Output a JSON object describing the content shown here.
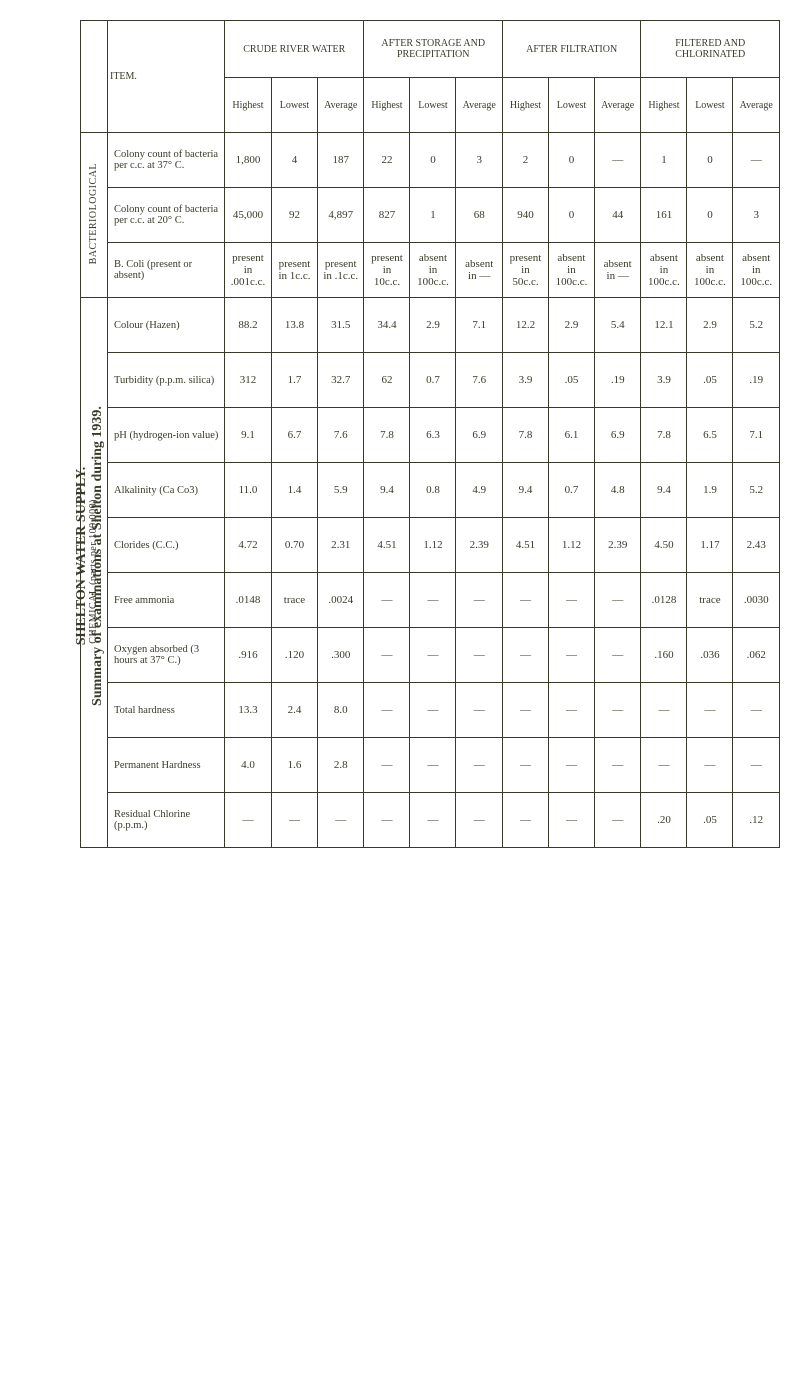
{
  "title": {
    "line1": "SHELTON WATER SUPPLY.",
    "line2": "Summary of examinations at Shelton during 1939."
  },
  "side_labels": {
    "bacteriological": "BACTERIOLOGICAL",
    "chemical": "CHEMICAL (parts per 100,000)"
  },
  "column_groups": [
    {
      "label": "CRUDE RIVER WATER"
    },
    {
      "label": "AFTER STORAGE AND PRECIPITATION"
    },
    {
      "label": "AFTER FILTRATION"
    },
    {
      "label": "FILTERED AND CHLORINATED"
    }
  ],
  "sub_columns": [
    "Highest",
    "Lowest",
    "Average"
  ],
  "item_header": "ITEM.",
  "rows": [
    {
      "label": "Colony count of bacteria per c.c. at 37° C.",
      "values": [
        "1,800",
        "4",
        "187",
        "22",
        "0",
        "3",
        "2",
        "0",
        "—",
        "1",
        "0",
        "—"
      ]
    },
    {
      "label": "Colony count of bacteria per c.c. at 20° C.",
      "values": [
        "45,000",
        "92",
        "4,897",
        "827",
        "1",
        "68",
        "940",
        "0",
        "44",
        "161",
        "0",
        "3"
      ]
    },
    {
      "label": "B. Coli (present or absent)",
      "values": [
        "present in .001c.c.",
        "present in 1c.c.",
        "present in .1c.c.",
        "present in 10c.c.",
        "absent in 100c.c.",
        "absent in —",
        "present in 50c.c.",
        "absent in 100c.c.",
        "absent in —",
        "absent in 100c.c.",
        "absent in 100c.c.",
        "absent in 100c.c."
      ]
    },
    {
      "label": "Colour (Hazen)",
      "values": [
        "88.2",
        "13.8",
        "31.5",
        "34.4",
        "2.9",
        "7.1",
        "12.2",
        "2.9",
        "5.4",
        "12.1",
        "2.9",
        "5.2"
      ]
    },
    {
      "label": "Turbidity (p.p.m. silica)",
      "values": [
        "312",
        "1.7",
        "32.7",
        "62",
        "0.7",
        "7.6",
        "3.9",
        ".05",
        ".19",
        "3.9",
        ".05",
        ".19"
      ]
    },
    {
      "label": "pH (hydrogen-ion value)",
      "values": [
        "9.1",
        "6.7",
        "7.6",
        "7.8",
        "6.3",
        "6.9",
        "7.8",
        "6.1",
        "6.9",
        "7.8",
        "6.5",
        "7.1"
      ]
    },
    {
      "label": "Alkalinity (Ca Co3)",
      "values": [
        "11.0",
        "1.4",
        "5.9",
        "9.4",
        "0.8",
        "4.9",
        "9.4",
        "0.7",
        "4.8",
        "9.4",
        "1.9",
        "5.2"
      ]
    },
    {
      "label": "Clorides (C.C.)",
      "values": [
        "4.72",
        "0.70",
        "2.31",
        "4.51",
        "1.12",
        "2.39",
        "4.51",
        "1.12",
        "2.39",
        "4.50",
        "1.17",
        "2.43"
      ]
    },
    {
      "label": "Free ammonia",
      "values": [
        ".0148",
        "trace",
        ".0024",
        "—",
        "—",
        "—",
        "—",
        "—",
        "—",
        ".0128",
        "trace",
        ".0030"
      ]
    },
    {
      "label": "Oxygen absorbed (3 hours at 37° C.)",
      "values": [
        ".916",
        ".120",
        ".300",
        "—",
        "—",
        "—",
        "—",
        "—",
        "—",
        ".160",
        ".036",
        ".062"
      ]
    },
    {
      "label": "Total hardness",
      "values": [
        "13.3",
        "2.4",
        "8.0",
        "—",
        "—",
        "—",
        "—",
        "—",
        "—",
        "—",
        "—",
        "—"
      ]
    },
    {
      "label": "Permanent Hardness",
      "values": [
        "4.0",
        "1.6",
        "2.8",
        "—",
        "—",
        "—",
        "—",
        "—",
        "—",
        "—",
        "—",
        "—"
      ]
    },
    {
      "label": "Residual Chlorine (p.p.m.)",
      "values": [
        "—",
        "—",
        "—",
        "—",
        "—",
        "—",
        "—",
        "—",
        "—",
        ".20",
        ".05",
        ".12"
      ]
    }
  ],
  "styling": {
    "background": "#ffffff",
    "text_color": "#3a3a2a",
    "border_color": "#3a3a2a",
    "font_family": "Georgia, serif",
    "title_fontsize": 14,
    "body_fontsize": 11
  }
}
